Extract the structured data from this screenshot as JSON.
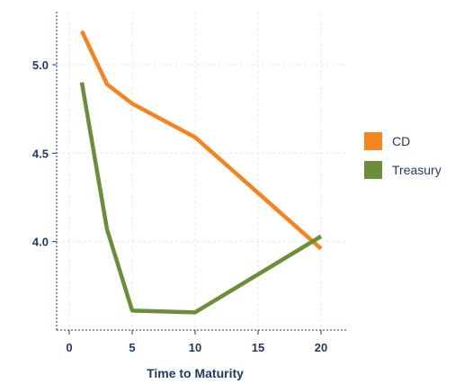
{
  "chart_data": {
    "type": "line",
    "title": "",
    "xlabel": "Time to Maturity",
    "ylabel": "",
    "xlim": [
      -1,
      22
    ],
    "ylim": [
      3.5,
      5.3
    ],
    "xticks": [
      0,
      5,
      10,
      15,
      20
    ],
    "yticks": [
      4.0,
      4.5,
      5.0
    ],
    "xtick_labels": [
      "0",
      "5",
      "10",
      "15",
      "20"
    ],
    "ytick_labels": [
      "4.0",
      "4.5",
      "5.0"
    ],
    "grid": true,
    "legend_position": "right",
    "series": [
      {
        "name": "CD",
        "color": "#f5831f",
        "x": [
          1,
          3,
          5,
          10,
          20
        ],
        "y": [
          5.19,
          4.89,
          4.78,
          4.59,
          3.96
        ]
      },
      {
        "name": "Treasury",
        "color": "#6b8e3a",
        "x": [
          1,
          3,
          5,
          10,
          20
        ],
        "y": [
          4.9,
          4.07,
          3.61,
          3.6,
          4.03
        ]
      }
    ]
  }
}
